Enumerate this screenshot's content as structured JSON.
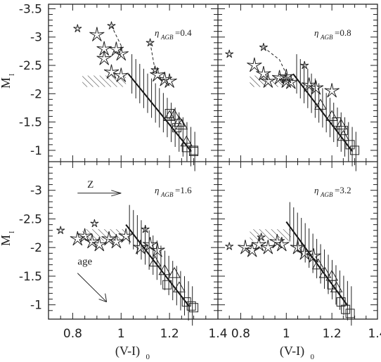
{
  "chart_data": [
    {
      "type": "scatter",
      "panel": "top-left",
      "label_eta": "η",
      "label_sub": "AGB",
      "label_value": "=0.4",
      "xlim": [
        0.7,
        1.4
      ],
      "ylim": [
        -0.8,
        -3.5
      ],
      "red_branch_line": [
        [
          1.03,
          -2.35
        ],
        [
          1.29,
          -0.98
        ]
      ],
      "stars_big": [
        [
          0.9,
          -3.04
        ],
        [
          0.93,
          -2.79
        ],
        [
          0.93,
          -2.62
        ],
        [
          0.96,
          -2.38
        ],
        [
          0.98,
          -2.78
        ],
        [
          1.0,
          -2.7
        ],
        [
          1.0,
          -2.32
        ],
        [
          1.15,
          -2.33
        ],
        [
          1.18,
          -2.25
        ],
        [
          1.2,
          -2.22
        ]
      ],
      "stars_small": [
        [
          0.82,
          -3.15
        ],
        [
          0.96,
          -3.2
        ],
        [
          1.12,
          -2.9
        ],
        [
          1.14,
          -2.42
        ]
      ],
      "triangles": [
        [
          1.2,
          -1.6
        ],
        [
          1.22,
          -1.62
        ],
        [
          1.24,
          -1.5
        ],
        [
          1.25,
          -1.45
        ],
        [
          1.27,
          -1.15
        ]
      ],
      "squares": [
        [
          1.2,
          -1.65
        ],
        [
          1.23,
          -1.4
        ],
        [
          1.27,
          -1.05
        ],
        [
          1.3,
          -1.0
        ],
        [
          1.3,
          -0.98
        ]
      ],
      "dashed_paths": [
        [
          [
            0.96,
            -3.2
          ],
          [
            1.0,
            -2.85
          ],
          [
            1.0,
            -2.7
          ]
        ],
        [
          [
            1.12,
            -2.9
          ],
          [
            1.14,
            -2.42
          ]
        ]
      ]
    },
    {
      "type": "scatter",
      "panel": "top-right",
      "label_eta": "η",
      "label_sub": "AGB",
      "label_value": "=0.8",
      "xlim": [
        0.7,
        1.4
      ],
      "ylim": [
        -0.8,
        -3.5
      ],
      "red_branch_line": [
        [
          1.03,
          -2.35
        ],
        [
          1.29,
          -0.98
        ]
      ],
      "stars_big": [
        [
          0.86,
          -2.5
        ],
        [
          0.9,
          -2.35
        ],
        [
          0.92,
          -2.22
        ],
        [
          0.97,
          -2.28
        ],
        [
          1.0,
          -2.3
        ],
        [
          1.0,
          -2.22
        ],
        [
          1.02,
          -2.2
        ],
        [
          1.1,
          -2.15
        ],
        [
          1.13,
          -2.1
        ],
        [
          1.2,
          -2.05
        ]
      ],
      "stars_small": [
        [
          0.75,
          -2.7
        ],
        [
          0.9,
          -2.82
        ],
        [
          1.08,
          -2.5
        ]
      ],
      "triangles": [
        [
          1.15,
          -1.8
        ],
        [
          1.2,
          -1.6
        ],
        [
          1.24,
          -1.45
        ],
        [
          1.25,
          -1.25
        ]
      ],
      "squares": [
        [
          1.22,
          -1.5
        ],
        [
          1.25,
          -1.35
        ],
        [
          1.28,
          -1.1
        ],
        [
          1.3,
          -1.0
        ]
      ],
      "dashed_paths": [
        [
          [
            0.9,
            -2.82
          ],
          [
            0.97,
            -2.6
          ],
          [
            1.0,
            -2.35
          ]
        ]
      ]
    },
    {
      "type": "scatter",
      "panel": "bottom-left",
      "label_eta": "η",
      "label_sub": "AGB",
      "label_value": "=1.6",
      "xlim": [
        0.7,
        1.4
      ],
      "ylim": [
        -0.8,
        -3.5
      ],
      "red_branch_line": [
        [
          1.02,
          -2.4
        ],
        [
          1.28,
          -0.98
        ]
      ],
      "stars_big": [
        [
          0.82,
          -2.15
        ],
        [
          0.85,
          -2.2
        ],
        [
          0.88,
          -2.1
        ],
        [
          0.91,
          -2.05
        ],
        [
          0.95,
          -2.15
        ],
        [
          0.98,
          -2.1
        ],
        [
          1.02,
          -2.2
        ],
        [
          1.08,
          -2.0
        ],
        [
          1.12,
          -2.05
        ],
        [
          1.15,
          -1.95
        ]
      ],
      "stars_small": [
        [
          0.75,
          -2.3
        ],
        [
          0.89,
          -2.42
        ],
        [
          1.1,
          -2.32
        ]
      ],
      "triangles": [
        [
          1.14,
          -1.75
        ],
        [
          1.18,
          -1.6
        ],
        [
          1.22,
          -1.55
        ],
        [
          1.24,
          -1.3
        ]
      ],
      "squares": [
        [
          1.19,
          -1.35
        ],
        [
          1.27,
          -1.05
        ],
        [
          1.29,
          -0.98
        ],
        [
          1.3,
          -0.95
        ]
      ],
      "dashed_paths": [],
      "annotation_z": "Z",
      "annotation_age": "age"
    },
    {
      "type": "scatter",
      "panel": "bottom-right",
      "label_eta": "η",
      "label_sub": "AGB",
      "label_value": "=3.2",
      "xlim": [
        0.7,
        1.4
      ],
      "ylim": [
        -0.8,
        -3.5
      ],
      "red_branch_line": [
        [
          1.0,
          -2.45
        ],
        [
          1.27,
          -0.98
        ]
      ],
      "stars_big": [
        [
          0.82,
          -2.0
        ],
        [
          0.85,
          -1.95
        ],
        [
          0.88,
          -2.05
        ],
        [
          0.92,
          -2.0
        ],
        [
          0.96,
          -2.1
        ],
        [
          0.98,
          -2.05
        ],
        [
          1.05,
          -2.0
        ],
        [
          1.08,
          -1.9
        ],
        [
          1.12,
          -1.85
        ]
      ],
      "stars_small": [
        [
          0.75,
          -2.02
        ],
        [
          0.89,
          -2.18
        ]
      ],
      "triangles": [
        [
          1.14,
          -1.7
        ],
        [
          1.17,
          -1.55
        ],
        [
          1.2,
          -1.5
        ],
        [
          1.22,
          -1.3
        ]
      ],
      "squares": [
        [
          1.2,
          -1.35
        ],
        [
          1.24,
          -1.05
        ],
        [
          1.26,
          -0.92
        ],
        [
          1.28,
          -0.85
        ]
      ],
      "dashed_paths": []
    }
  ],
  "axes": {
    "ylabel": "M",
    "ylabel_sub": "I",
    "xlabel": "(V-I)",
    "xlabel_sub": "0",
    "xticks": [
      "0.8",
      "1",
      "1.2",
      "1.4"
    ],
    "yticks": [
      "-3.5",
      "-3",
      "-2.5",
      "-2",
      "-1.5",
      "-1"
    ],
    "yticks_bottom": [
      "-3",
      "-2.5",
      "-2",
      "-1.5",
      "-1"
    ]
  }
}
